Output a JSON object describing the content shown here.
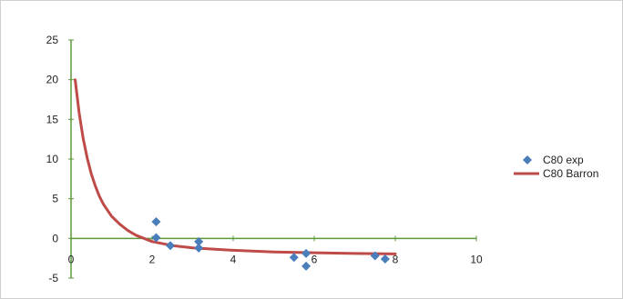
{
  "chart_data": {
    "type": "scatter",
    "title": "",
    "xlabel": "",
    "ylabel": "",
    "xlim": [
      0,
      10
    ],
    "ylim": [
      -5,
      25
    ],
    "x_ticks": [
      0,
      2,
      4,
      6,
      8,
      10
    ],
    "y_ticks": [
      -5,
      0,
      5,
      10,
      15,
      20,
      25
    ],
    "x_tick_labels": [
      "0",
      "2",
      "4",
      "6",
      "8",
      "10"
    ],
    "y_tick_labels": [
      "-5",
      "0",
      "5",
      "10",
      "15",
      "20",
      "25"
    ],
    "grid": false,
    "axis_color": "#5b9a3c",
    "legend_position": "right",
    "series": [
      {
        "name": "C80 exp",
        "kind": "scatter",
        "marker": "diamond",
        "color": "#4a7ebb",
        "points": [
          [
            2.1,
            2.1
          ],
          [
            2.1,
            0.1
          ],
          [
            2.45,
            -0.9
          ],
          [
            3.15,
            -0.4
          ],
          [
            3.15,
            -1.2
          ],
          [
            5.5,
            -2.4
          ],
          [
            5.8,
            -1.9
          ],
          [
            5.8,
            -3.5
          ],
          [
            7.5,
            -2.2
          ],
          [
            7.75,
            -2.6
          ]
        ]
      },
      {
        "name": "C80 Barron",
        "kind": "line",
        "color": "#be4b48",
        "points": [
          [
            0.1,
            20.0
          ],
          [
            0.2,
            15.8
          ],
          [
            0.3,
            12.6
          ],
          [
            0.4,
            10.1
          ],
          [
            0.5,
            8.1
          ],
          [
            0.6,
            6.6
          ],
          [
            0.7,
            5.3
          ],
          [
            0.8,
            4.3
          ],
          [
            1.0,
            2.8
          ],
          [
            1.2,
            1.8
          ],
          [
            1.4,
            1.0
          ],
          [
            1.6,
            0.4
          ],
          [
            1.8,
            0.0
          ],
          [
            2.0,
            -0.4
          ],
          [
            2.5,
            -0.9
          ],
          [
            3.0,
            -1.2
          ],
          [
            4.0,
            -1.5
          ],
          [
            5.0,
            -1.7
          ],
          [
            6.0,
            -1.8
          ],
          [
            7.0,
            -1.9
          ],
          [
            8.0,
            -1.95
          ]
        ]
      }
    ]
  }
}
